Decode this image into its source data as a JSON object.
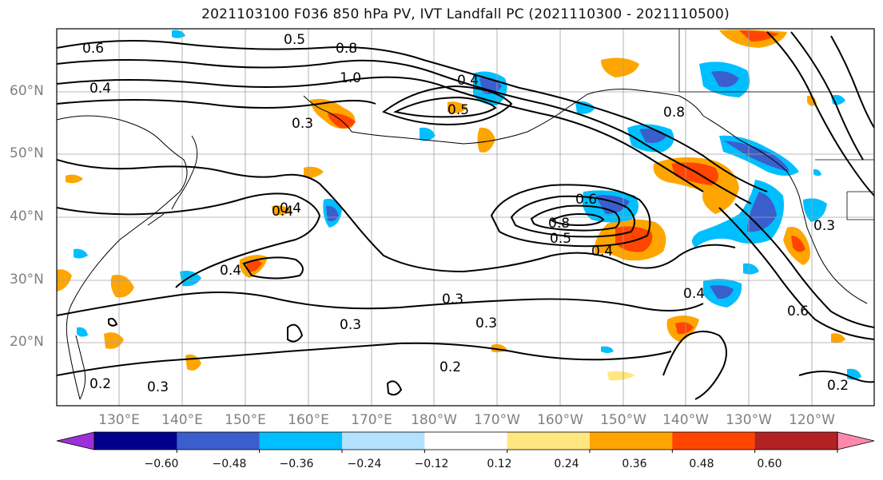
{
  "title": "2021103100 F036 850 hPa PV, IVT Landfall PC (2021110300 - 2021110500)",
  "lat_labels": [
    "60°N",
    "50°N",
    "40°N",
    "30°N",
    "20°N"
  ],
  "lon_labels": [
    "130°E",
    "140°E",
    "150°E",
    "160°E",
    "170°E",
    "180°W",
    "170°W",
    "160°W",
    "150°W",
    "140°W",
    "130°W",
    "120°W"
  ],
  "contour_labels": [
    "0.6",
    "0.4",
    "0.5",
    "0.8",
    "1.0",
    "0.4",
    "0.5",
    "0.3",
    "0.8",
    "0.4",
    "0.6",
    "0.4",
    "0.8",
    "0.5",
    "0.4",
    "0.4",
    "0.3",
    "0.3",
    "0.3",
    "0.2",
    "0.3",
    "0.4",
    "0.6",
    "0.3",
    "0.2",
    "0.2"
  ],
  "colorbar": {
    "tick_labels": [
      "−0.60",
      "−0.48",
      "−0.36",
      "−0.24",
      "−0.12",
      "0.12",
      "0.24",
      "0.36",
      "0.48",
      "0.60"
    ],
    "colors": [
      "#9b30d8",
      "#00008b",
      "#3a5fcd",
      "#00bfff",
      "#b2e2ff",
      "#ffffff",
      "#ffe680",
      "#ffa500",
      "#ff4500",
      "#b22222",
      "#ff88aa"
    ],
    "extend": "both"
  },
  "colors": {
    "contour": "#000000",
    "grid": "#a0a0a0",
    "coast": "#000000",
    "axis_label": "#808080"
  }
}
